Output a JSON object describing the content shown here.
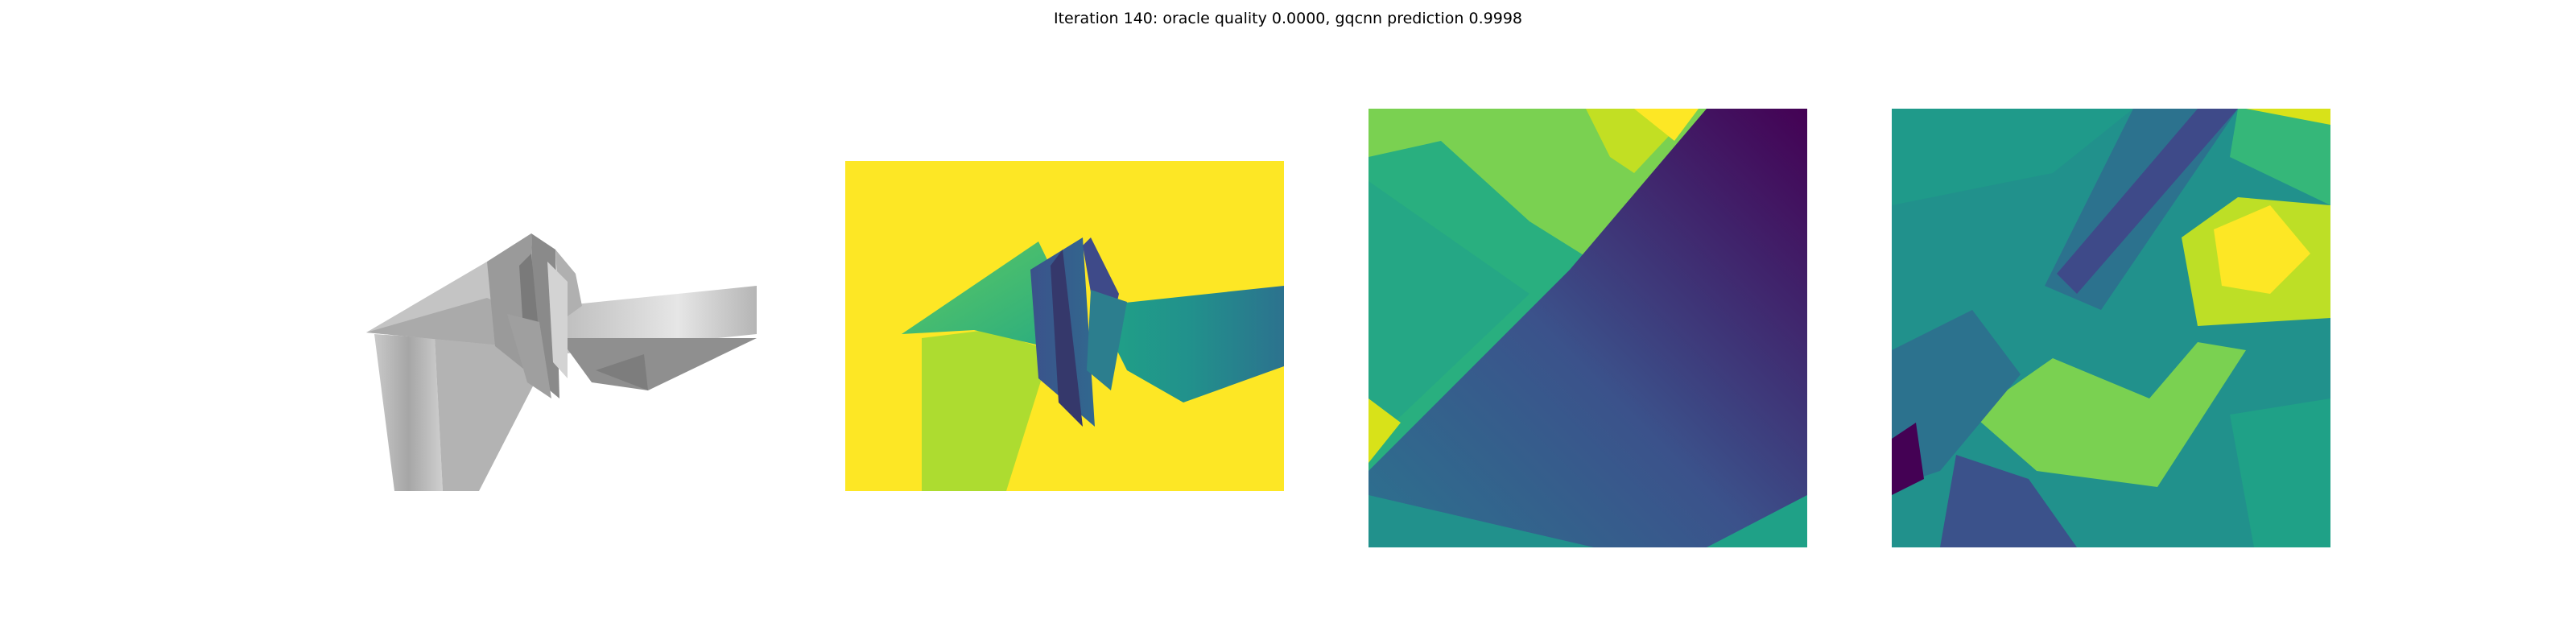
{
  "figure": {
    "title": "Iteration 140: oracle quality 0.0000, gqcnn prediction 0.9998"
  },
  "panels": [
    {
      "kind": "grayscale-render"
    },
    {
      "kind": "depth-image-viridis"
    },
    {
      "kind": "depth-crop-viridis"
    },
    {
      "kind": "prediction-map-viridis"
    }
  ],
  "colors": {
    "background": "#ffffff",
    "viridis_yellow": "#fde725",
    "viridis_green": "#5ec962",
    "viridis_teal": "#21918c",
    "viridis_blue": "#3b528b",
    "viridis_purple": "#440154"
  }
}
